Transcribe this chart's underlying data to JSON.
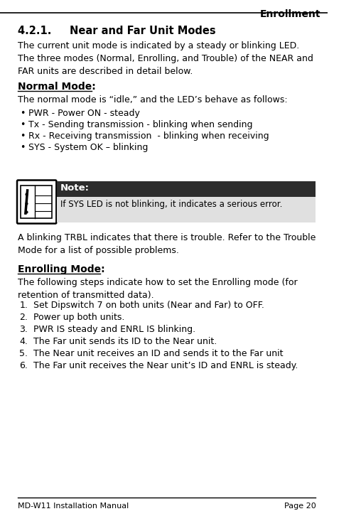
{
  "title_right": "Enrollment",
  "section_heading": "4.2.1.     Near and Far Unit Modes",
  "intro_text": "The current unit mode is indicated by a steady or blinking LED.\nThe three modes (Normal, Enrolling, and Trouble) of the NEAR and\nFAR units are described in detail below.",
  "normal_mode_heading": "Normal Mode:",
  "normal_mode_intro": "The normal mode is “idle,” and the LED’s behave as follows:",
  "bullet_items": [
    "PWR - Power ON - steady",
    "Tx - Sending transmission - blinking when sending",
    "Rx - Receiving transmission  - blinking when receiving",
    "SYS - System OK – blinking"
  ],
  "note_label": "Note:",
  "note_text": "If SYS LED is not blinking, it indicates a serious error.",
  "trouble_text": "A blinking TRBL indicates that there is trouble. Refer to the Trouble\nMode for a list of possible problems.",
  "enrolling_mode_heading": "Enrolling Mode:",
  "enrolling_intro": "The following steps indicate how to set the Enrolling mode (for\nretention of transmitted data).",
  "numbered_items": [
    "Set Dipswitch 7 on both units (Near and Far) to OFF.",
    "Power up both units.",
    "PWR IS steady and ENRL IS blinking.",
    "The Far unit sends its ID to the Near unit.",
    "The Near unit receives an ID and sends it to the Far unit",
    "The Far unit receives the Near unit’s ID and ENRL is steady."
  ],
  "footer_left": "MD-W11 Installation Manual",
  "footer_right": "Page 20",
  "bg_color": "#ffffff",
  "text_color": "#000000",
  "note_header_bg": "#2d2d2d",
  "note_body_bg": "#e0e0e0",
  "note_header_color": "#ffffff",
  "heading_color": "#000000"
}
